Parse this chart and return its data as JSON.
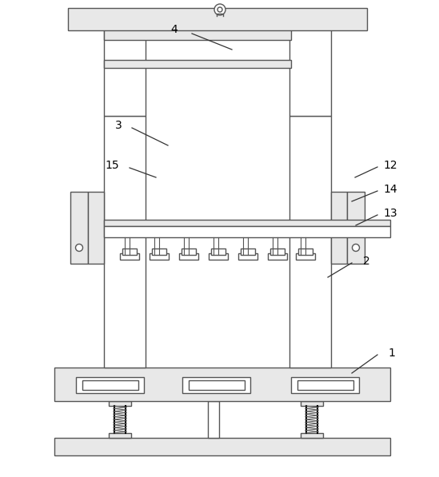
{
  "background_color": "#ffffff",
  "line_color": "#555555",
  "lw": 1.0,
  "label_fontsize": 10,
  "gray": "#c8c8c8",
  "white": "#ffffff",
  "light_gray": "#e8e8e8"
}
